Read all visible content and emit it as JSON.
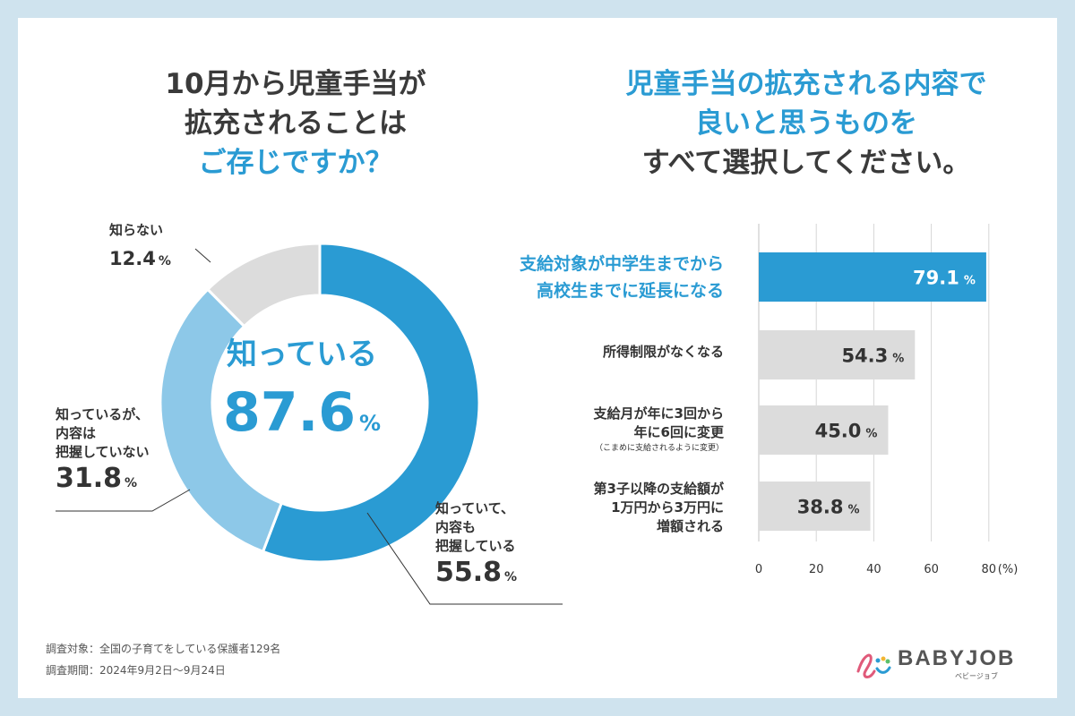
{
  "left_title": {
    "line1": "10月から児童手当が",
    "line2": "拡充されることは",
    "line3": "ご存じですか？"
  },
  "right_title": {
    "line1": "児童手当の拡充される内容で",
    "line2": "良いと思うものを",
    "line3": "すべて選択してください。"
  },
  "donut": {
    "center_label": "知っている",
    "center_value": "87.6",
    "pct_symbol": "%",
    "slices": [
      {
        "label_lines": [
          "知っていて、",
          "内容も",
          "把握している"
        ],
        "value_text": "55.8",
        "value": 55.8,
        "color": "#2a9bd3"
      },
      {
        "label_lines": [
          "知っているが、",
          "内容は",
          "把握していない"
        ],
        "value_text": "31.8",
        "value": 31.8,
        "color": "#8dc8e8"
      },
      {
        "label_lines": [
          "知らない"
        ],
        "value_text": "12.4",
        "value": 12.4,
        "color": "#dcdcdc"
      }
    ]
  },
  "chart_data": [
    {
      "type": "pie",
      "title": "10月から児童手当が拡充されることはご存じですか？",
      "categories": [
        "知っていて、内容も把握している",
        "知っているが、内容は把握していない",
        "知らない"
      ],
      "values": [
        55.8,
        31.8,
        12.4
      ],
      "center_total": 87.6
    },
    {
      "type": "bar",
      "title": "児童手当の拡充される内容で良いと思うものをすべて選択してください。",
      "categories": [
        "支給対象が中学生までから高校生までに延長になる",
        "所得制限がなくなる",
        "支給月が年に3回から年に6回に変更",
        "第3子以降の支給額が1万円から3万円に増額される"
      ],
      "values": [
        79.1,
        54.3,
        45.0,
        38.8
      ],
      "xlim": [
        0,
        80
      ],
      "ticks": [
        0,
        20,
        40,
        60,
        80
      ],
      "tick_labels": [
        "0",
        "20",
        "40",
        "60",
        "80"
      ],
      "unit_label": "(%)",
      "xlabel": "",
      "ylabel": ""
    }
  ],
  "bar_labels": [
    {
      "lines": [
        "支給対象が中学生までから",
        "高校生までに延長になる"
      ],
      "value_text": "79.1",
      "highlight": true
    },
    {
      "lines": [
        "所得制限がなくなる"
      ],
      "value_text": "54.3",
      "highlight": false
    },
    {
      "lines": [
        "支給月が年に3回から",
        "年に6回に変更"
      ],
      "note": "（こまめに支給されるように変更）",
      "value_text": "45.0",
      "highlight": false
    },
    {
      "lines": [
        "第3子以降の支給額が",
        "1万円から3万円に",
        "増額される"
      ],
      "value_text": "38.8",
      "highlight": false
    }
  ],
  "colors": {
    "accent": "#2a9bd3",
    "light_blue": "#8dc8e8",
    "gray_bar": "#dcdcdc",
    "frame": "#cfe3ee"
  },
  "footer": {
    "target": "調査対象：全国の子育てをしている保護者129名",
    "period": "調査期間：2024年9月2日〜9月24日"
  },
  "logo": {
    "text": "BABYJOB",
    "sub": "ベビージョブ"
  }
}
